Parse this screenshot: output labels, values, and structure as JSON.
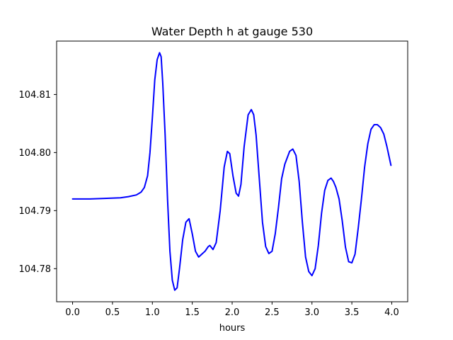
{
  "chart_data": {
    "type": "line",
    "title": "Water Depth h at gauge 530",
    "xlabel": "hours",
    "ylabel": "",
    "xlim": [
      -0.2,
      4.2
    ],
    "ylim": [
      104.7743,
      104.8192
    ],
    "xticks": [
      0.0,
      0.5,
      1.0,
      1.5,
      2.0,
      2.5,
      3.0,
      3.5,
      4.0
    ],
    "xtick_labels": [
      "0.0",
      "0.5",
      "1.0",
      "1.5",
      "2.0",
      "2.5",
      "3.0",
      "3.5",
      "4.0"
    ],
    "yticks": [
      104.78,
      104.79,
      104.8,
      104.81
    ],
    "ytick_labels": [
      "104.78",
      "104.79",
      "104.80",
      "104.81"
    ],
    "grid": false,
    "series": [
      {
        "name": "h",
        "color": "#0000ff",
        "x": [
          0.0,
          0.2,
          0.4,
          0.6,
          0.7,
          0.8,
          0.86,
          0.9,
          0.94,
          0.97,
          1.0,
          1.03,
          1.06,
          1.09,
          1.11,
          1.13,
          1.16,
          1.19,
          1.22,
          1.25,
          1.28,
          1.31,
          1.34,
          1.38,
          1.42,
          1.46,
          1.5,
          1.54,
          1.58,
          1.62,
          1.66,
          1.7,
          1.72,
          1.76,
          1.8,
          1.85,
          1.9,
          1.94,
          1.97,
          2.01,
          2.05,
          2.08,
          2.11,
          2.15,
          2.2,
          2.24,
          2.27,
          2.3,
          2.34,
          2.38,
          2.42,
          2.46,
          2.5,
          2.54,
          2.58,
          2.62,
          2.66,
          2.72,
          2.76,
          2.8,
          2.84,
          2.88,
          2.92,
          2.96,
          3.0,
          3.04,
          3.08,
          3.12,
          3.16,
          3.2,
          3.24,
          3.27,
          3.3,
          3.34,
          3.38,
          3.42,
          3.46,
          3.5,
          3.54,
          3.58,
          3.62,
          3.66,
          3.7,
          3.74,
          3.78,
          3.82,
          3.86,
          3.9,
          3.94,
          3.99
        ],
        "y": [
          104.792,
          104.792,
          104.7921,
          104.7922,
          104.7924,
          104.7927,
          104.7932,
          104.794,
          104.796,
          104.8,
          104.806,
          104.8125,
          104.816,
          104.8172,
          104.8165,
          104.812,
          104.803,
          104.792,
          104.783,
          104.778,
          104.7763,
          104.7767,
          104.78,
          104.785,
          104.788,
          104.7886,
          104.786,
          104.783,
          104.782,
          104.7825,
          104.783,
          104.7838,
          104.784,
          104.7833,
          104.7845,
          104.79,
          104.7975,
          104.8002,
          104.7998,
          104.796,
          104.793,
          104.7925,
          104.7945,
          104.801,
          104.8065,
          104.8074,
          104.8065,
          104.803,
          104.7955,
          104.788,
          104.7838,
          104.7826,
          104.783,
          104.786,
          104.7905,
          104.7955,
          104.798,
          104.8002,
          104.8006,
          104.7995,
          104.795,
          104.788,
          104.782,
          104.7795,
          104.7788,
          104.78,
          104.784,
          104.7895,
          104.7935,
          104.7952,
          104.7956,
          104.795,
          104.794,
          104.792,
          104.7882,
          104.7837,
          104.7812,
          104.781,
          104.7825,
          104.787,
          104.792,
          104.7975,
          104.8015,
          104.804,
          104.8048,
          104.8048,
          104.8043,
          104.8032,
          104.801,
          104.7978
        ]
      }
    ]
  }
}
